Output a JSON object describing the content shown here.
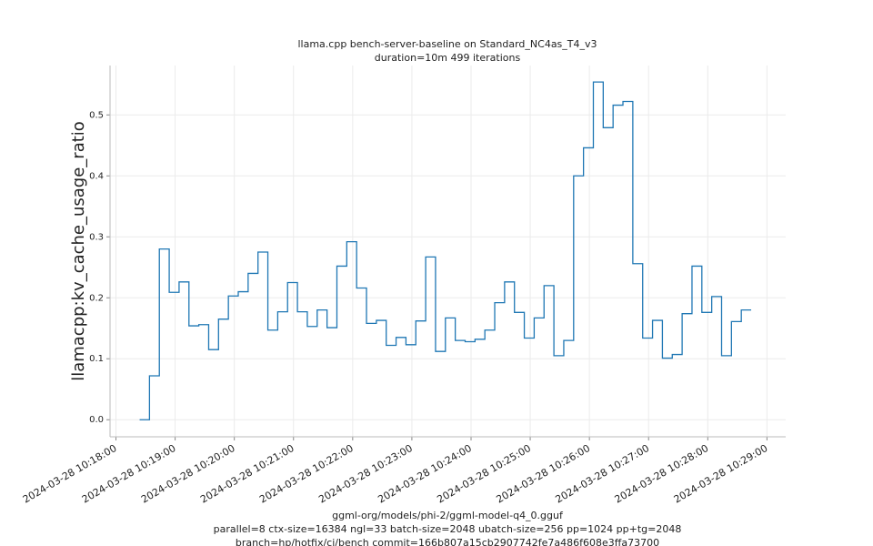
{
  "chart_data": {
    "type": "line",
    "drawstyle": "steps-post",
    "title": "llama.cpp bench-server-baseline on Standard_NC4as_T4_v3",
    "subtitle": "duration=10m 499 iterations",
    "y_label": "llamacpp:kv_cache_usage_ratio",
    "x_label": [
      "ggml-org/models/phi-2/ggml-model-q4_0.gguf",
      "parallel=8 ctx-size=16384 ngl=33 batch-size=2048 ubatch-size=256 pp=1024 pp+tg=2048",
      "branch=hp/hotfix/ci/bench commit=166b807a15cb2907742fe7a486f608e3ffa73700"
    ],
    "grid": true,
    "color": "#1f77b4",
    "xlim": [
      "2024-03-28 10:17:54",
      "2024-03-28 10:29:19"
    ],
    "xticks": [
      "2024-03-28 10:18:00",
      "2024-03-28 10:19:00",
      "2024-03-28 10:20:00",
      "2024-03-28 10:21:00",
      "2024-03-28 10:22:00",
      "2024-03-28 10:23:00",
      "2024-03-28 10:24:00",
      "2024-03-28 10:25:00",
      "2024-03-28 10:26:00",
      "2024-03-28 10:27:00",
      "2024-03-28 10:28:00",
      "2024-03-28 10:29:00"
    ],
    "ylim": [
      -0.028,
      0.581
    ],
    "yticks": [
      {
        "value": 0,
        "label": "0.0"
      },
      0.1,
      0.2,
      0.3,
      0.4,
      0.5
    ],
    "x": [
      "2024-03-28 10:18:24",
      "2024-03-28 10:18:34",
      "2024-03-28 10:18:44",
      "2024-03-28 10:18:54",
      "2024-03-28 10:19:04",
      "2024-03-28 10:19:14",
      "2024-03-28 10:19:24",
      "2024-03-28 10:19:34",
      "2024-03-28 10:19:44",
      "2024-03-28 10:19:54",
      "2024-03-28 10:20:04",
      "2024-03-28 10:20:14",
      "2024-03-28 10:20:24",
      "2024-03-28 10:20:34",
      "2024-03-28 10:20:44",
      "2024-03-28 10:20:54",
      "2024-03-28 10:21:04",
      "2024-03-28 10:21:14",
      "2024-03-28 10:21:24",
      "2024-03-28 10:21:34",
      "2024-03-28 10:21:44",
      "2024-03-28 10:21:54",
      "2024-03-28 10:22:04",
      "2024-03-28 10:22:14",
      "2024-03-28 10:22:24",
      "2024-03-28 10:22:34",
      "2024-03-28 10:22:44",
      "2024-03-28 10:22:54",
      "2024-03-28 10:23:04",
      "2024-03-28 10:23:14",
      "2024-03-28 10:23:24",
      "2024-03-28 10:23:34",
      "2024-03-28 10:23:44",
      "2024-03-28 10:23:54",
      "2024-03-28 10:24:04",
      "2024-03-28 10:24:14",
      "2024-03-28 10:24:24",
      "2024-03-28 10:24:34",
      "2024-03-28 10:24:44",
      "2024-03-28 10:24:54",
      "2024-03-28 10:25:04",
      "2024-03-28 10:25:14",
      "2024-03-28 10:25:24",
      "2024-03-28 10:25:34",
      "2024-03-28 10:25:44",
      "2024-03-28 10:25:54",
      "2024-03-28 10:26:04",
      "2024-03-28 10:26:14",
      "2024-03-28 10:26:24",
      "2024-03-28 10:26:34",
      "2024-03-28 10:26:44",
      "2024-03-28 10:26:54",
      "2024-03-28 10:27:04",
      "2024-03-28 10:27:14",
      "2024-03-28 10:27:24",
      "2024-03-28 10:27:34",
      "2024-03-28 10:27:44",
      "2024-03-28 10:27:54",
      "2024-03-28 10:28:04",
      "2024-03-28 10:28:14",
      "2024-03-28 10:28:24",
      "2024-03-28 10:28:34",
      "2024-03-28 10:28:44"
    ],
    "values": [
      0,
      0.072,
      0.28,
      0.209,
      0.226,
      0.154,
      0.156,
      0.115,
      0.165,
      0.203,
      0.21,
      0.24,
      0.275,
      0.147,
      0.177,
      0.225,
      0.177,
      0.153,
      0.18,
      0.151,
      0.252,
      0.292,
      0.216,
      0.158,
      0.163,
      0.122,
      0.135,
      0.123,
      0.162,
      0.267,
      0.112,
      0.167,
      0.13,
      0.128,
      0.132,
      0.147,
      0.192,
      0.226,
      0.176,
      0.134,
      0.167,
      0.22,
      0.105,
      0.13,
      0.4,
      0.446,
      0.554,
      0.479,
      0.516,
      0.522,
      0.256,
      0.134,
      0.163,
      0.101,
      0.107,
      0.174,
      0.252,
      0.176,
      0.202,
      0.105,
      0.161,
      0.18,
      0.18
    ]
  }
}
